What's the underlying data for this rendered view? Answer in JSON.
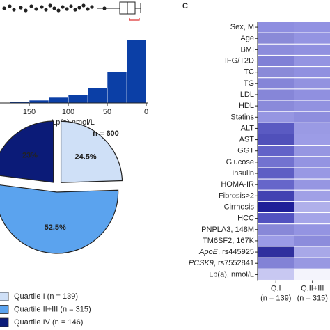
{
  "panel_label": "C",
  "chart_data": [
    {
      "type": "histogram",
      "x_label": "Lp(a) nmol/L",
      "bins": [
        0,
        25,
        50,
        75,
        100,
        125,
        150,
        175
      ],
      "values": [
        91,
        45,
        22,
        12,
        8,
        4,
        2
      ],
      "color": "#0b3fa6",
      "xlim": [
        187.5,
        0
      ],
      "ylim": [
        0,
        100
      ],
      "xticks": [
        150,
        100,
        50,
        0
      ]
    },
    {
      "type": "pie",
      "title": "n = 600",
      "categories": [
        "Quartile I (n = 139)",
        "Quartile II+III (n = 315)",
        "Quartile IV (n = 146)"
      ],
      "values": [
        24.5,
        52.5,
        23
      ],
      "value_labels": [
        "24.5%",
        "52.5%",
        "23%"
      ],
      "colors": [
        "#cfe0f7",
        "#5ba3ee",
        "#0b1b78"
      ]
    },
    {
      "type": "heatmap",
      "columns": [
        "Q.I",
        "Q.II+III"
      ],
      "column_subtitles": [
        "(n = 139)",
        "(n = 315)"
      ],
      "rows": [
        {
          "label": "Sex, M",
          "colors": [
            "#8e8ee0",
            "#9292e2"
          ]
        },
        {
          "label": "Age",
          "colors": [
            "#8a8ad8",
            "#9494e2"
          ]
        },
        {
          "label": "BMI",
          "colors": [
            "#8c8cdc",
            "#9090e0"
          ]
        },
        {
          "label": "IFG/T2D",
          "colors": [
            "#8080d6",
            "#9494e2"
          ]
        },
        {
          "label": "TC",
          "colors": [
            "#8a8ad8",
            "#9090e0"
          ]
        },
        {
          "label": "TG",
          "colors": [
            "#8585d8",
            "#9292e0"
          ]
        },
        {
          "label": "LDL",
          "colors": [
            "#8686d8",
            "#9090e0"
          ]
        },
        {
          "label": "HDL",
          "colors": [
            "#8a8ada",
            "#9292e0"
          ]
        },
        {
          "label": "Statins",
          "colors": [
            "#9696e2",
            "#8e8ede"
          ]
        },
        {
          "label": "ALT",
          "colors": [
            "#5a5ac2",
            "#9a9ae4"
          ]
        },
        {
          "label": "AST",
          "colors": [
            "#5050ba",
            "#9c9ce6"
          ]
        },
        {
          "label": "GGT",
          "colors": [
            "#6262c8",
            "#9696e2"
          ]
        },
        {
          "label": "Glucose",
          "colors": [
            "#7272d0",
            "#9494e2"
          ]
        },
        {
          "label": "Insulin",
          "colors": [
            "#5e5ec4",
            "#9898e4"
          ]
        },
        {
          "label": "HOMA-IR",
          "colors": [
            "#6666ca",
            "#9696e2"
          ]
        },
        {
          "label": "Fibrosis>2",
          "colors": [
            "#4242b2",
            "#a0a0e6"
          ]
        },
        {
          "label": "Cirrhosis",
          "colors": [
            "#1e1e98",
            "#b0b0ea"
          ]
        },
        {
          "label": "HCC",
          "colors": [
            "#5252c0",
            "#a4a4e8"
          ]
        },
        {
          "label": "PNPLA3, 148M",
          "colors": [
            "#8888d8",
            "#9494e2"
          ]
        },
        {
          "label": "TM6SF2, 167K",
          "colors": [
            "#9c9ce6",
            "#8c8cdc"
          ]
        },
        {
          "gene": "ApoE",
          "label": ", rs445925",
          "colors": [
            "#30309e",
            "#a8a8e8"
          ]
        },
        {
          "gene": "PCSK9",
          "label": ", rs7552841",
          "colors": [
            "#8282d6",
            "#9898e2"
          ]
        },
        {
          "label": "Lp(a), nmol/L",
          "colors": [
            "#c8c8f2",
            "#f4f4fc"
          ]
        }
      ]
    }
  ]
}
